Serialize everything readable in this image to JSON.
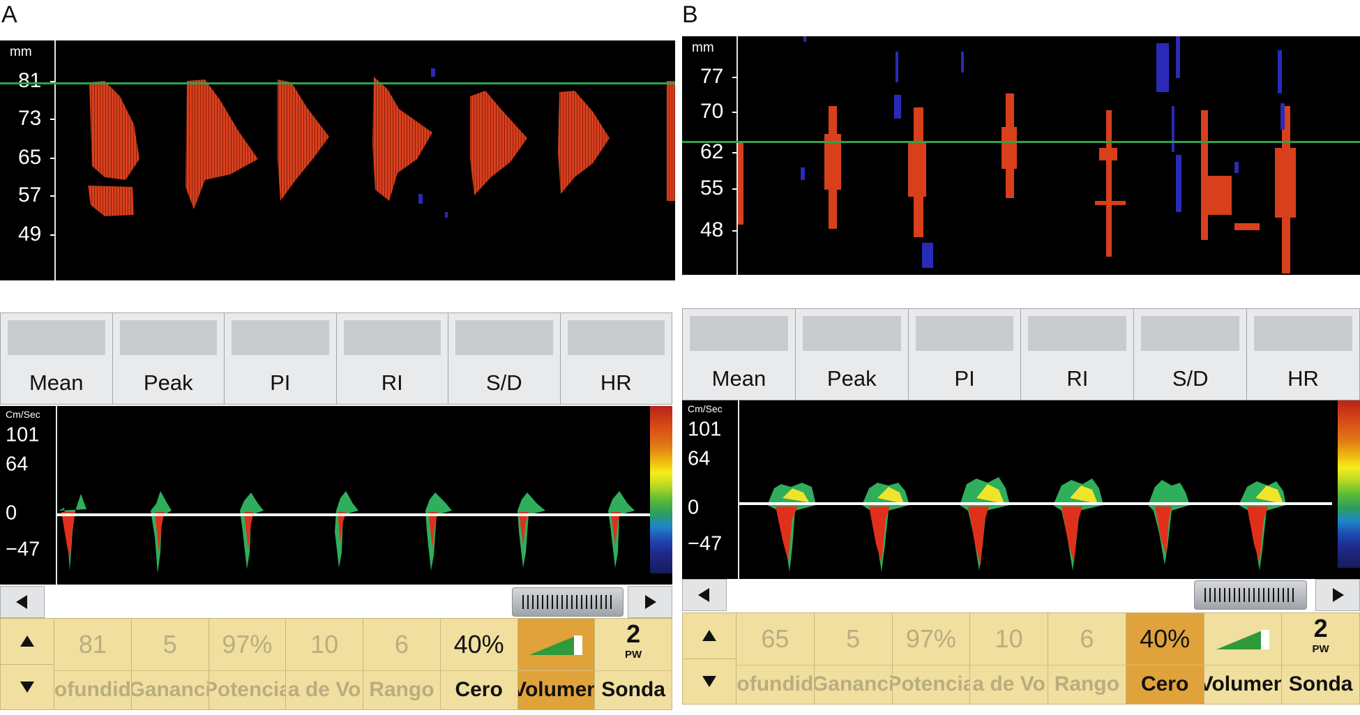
{
  "panels": [
    {
      "letter": "A",
      "mmode": {
        "unit": "mm",
        "ticks": [
          "81",
          "73",
          "65",
          "57",
          "49"
        ]
      },
      "measurements": [
        "Mean",
        "Peak",
        "PI",
        "RI",
        "S/D",
        "HR"
      ],
      "spectrum": {
        "unit": "Cm/Sec",
        "ticks": [
          "101",
          "64",
          "0",
          "−47"
        ]
      },
      "controls": {
        "values": [
          "81",
          "5",
          "97%",
          "10",
          "6",
          "40%"
        ],
        "labels": [
          "ofundid",
          "Gananci",
          "Potencia",
          "a de Vo",
          "Rango",
          "Cero",
          "Volumen",
          "Sonda"
        ],
        "sonda_value": "2",
        "sonda_mode": "PW"
      }
    },
    {
      "letter": "B",
      "mmode": {
        "unit": "mm",
        "ticks": [
          "77",
          "70",
          "62",
          "55",
          "48"
        ]
      },
      "measurements": [
        "Mean",
        "Peak",
        "PI",
        "RI",
        "S/D",
        "HR"
      ],
      "spectrum": {
        "unit": "Cm/Sec",
        "ticks": [
          "101",
          "64",
          "0",
          "−47"
        ]
      },
      "controls": {
        "values": [
          "65",
          "5",
          "97%",
          "10",
          "6",
          "40%"
        ],
        "labels": [
          "ofundid",
          "Gananci",
          "Potencia",
          "a de Vo",
          "Rango",
          "Cero",
          "Volumen",
          "Sonda"
        ],
        "sonda_value": "2",
        "sonda_mode": "PW"
      }
    }
  ],
  "colors": {
    "cursor": "#2ea34a",
    "flow": "#d8401c",
    "reverse_flow": "#2b2ab8",
    "control_bg": "#f0df9e",
    "highlight": "#e0a23a"
  }
}
